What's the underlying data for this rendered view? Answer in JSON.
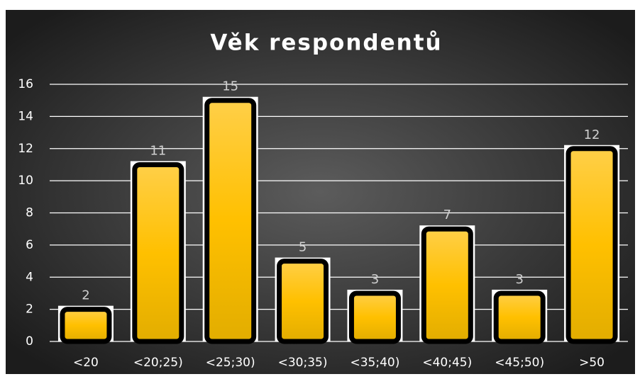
{
  "chart_data": {
    "type": "bar",
    "title": "Věk respondentů",
    "categories": [
      "<20",
      "<20;25)",
      "<25;30)",
      "<30;35)",
      "<35;40)",
      "<40;45)",
      "<45;50)",
      ">50"
    ],
    "values": [
      2,
      11,
      15,
      5,
      3,
      7,
      3,
      12
    ],
    "color": "#ffc000",
    "ylim": [
      0,
      16
    ],
    "yticks": [
      0,
      2,
      4,
      6,
      8,
      10,
      12,
      14,
      16
    ],
    "grid": true
  }
}
